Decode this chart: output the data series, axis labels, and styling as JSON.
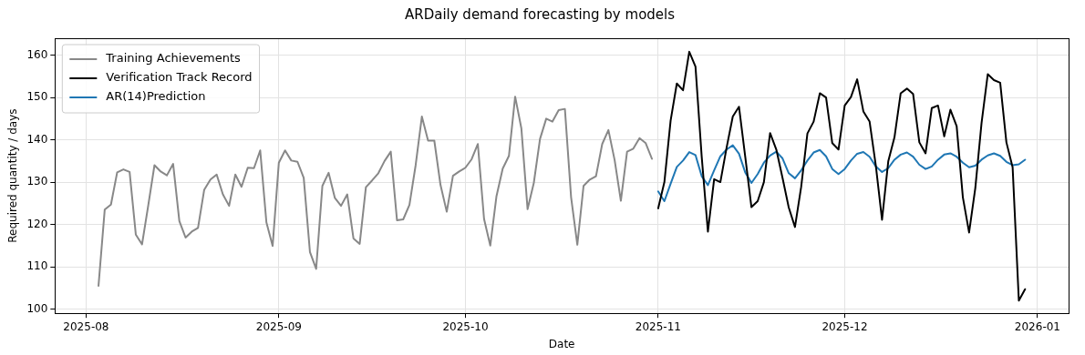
{
  "chart_data": {
    "type": "line",
    "title": "ARDaily demand forecasting by models",
    "xlabel": "Date",
    "ylabel": "Required quantity / days",
    "xlim": [
      "2025-07-27",
      "2026-01-06"
    ],
    "xticks": [
      {
        "value": "2025-08-01",
        "label": "2025-08"
      },
      {
        "value": "2025-09-01",
        "label": "2025-09"
      },
      {
        "value": "2025-10-01",
        "label": "2025-10"
      },
      {
        "value": "2025-11-01",
        "label": "2025-11"
      },
      {
        "value": "2025-12-01",
        "label": "2025-12"
      },
      {
        "value": "2026-01-01",
        "label": "2026-01"
      }
    ],
    "ylim": [
      99,
      164
    ],
    "yticks": [
      100,
      110,
      120,
      130,
      140,
      150,
      160
    ],
    "grid": true,
    "legend": "top left",
    "series": [
      {
        "name": "Training Achievements",
        "color": "#888888",
        "x": [
          "2025-08-03",
          "2025-08-04",
          "2025-08-05",
          "2025-08-06",
          "2025-08-07",
          "2025-08-08",
          "2025-08-09",
          "2025-08-10",
          "2025-08-11",
          "2025-08-12",
          "2025-08-13",
          "2025-08-14",
          "2025-08-15",
          "2025-08-16",
          "2025-08-17",
          "2025-08-18",
          "2025-08-19",
          "2025-08-20",
          "2025-08-21",
          "2025-08-22",
          "2025-08-23",
          "2025-08-24",
          "2025-08-25",
          "2025-08-26",
          "2025-08-27",
          "2025-08-28",
          "2025-08-29",
          "2025-08-30",
          "2025-08-31",
          "2025-09-01",
          "2025-09-02",
          "2025-09-03",
          "2025-09-04",
          "2025-09-05",
          "2025-09-06",
          "2025-09-07",
          "2025-09-08",
          "2025-09-09",
          "2025-09-10",
          "2025-09-11",
          "2025-09-12",
          "2025-09-13",
          "2025-09-14",
          "2025-09-15",
          "2025-09-16",
          "2025-09-17",
          "2025-09-18",
          "2025-09-19",
          "2025-09-20",
          "2025-09-21",
          "2025-09-22",
          "2025-09-23",
          "2025-09-24",
          "2025-09-25",
          "2025-09-26",
          "2025-09-27",
          "2025-09-28",
          "2025-09-29",
          "2025-09-30",
          "2025-10-01",
          "2025-10-02",
          "2025-10-03",
          "2025-10-04",
          "2025-10-05",
          "2025-10-06",
          "2025-10-07",
          "2025-10-08",
          "2025-10-09",
          "2025-10-10",
          "2025-10-11",
          "2025-10-12",
          "2025-10-13",
          "2025-10-14",
          "2025-10-15",
          "2025-10-16",
          "2025-10-17",
          "2025-10-18",
          "2025-10-19",
          "2025-10-20",
          "2025-10-21",
          "2025-10-22",
          "2025-10-23",
          "2025-10-24",
          "2025-10-25",
          "2025-10-26",
          "2025-10-27",
          "2025-10-28",
          "2025-10-29",
          "2025-10-30",
          "2025-10-31"
        ],
        "values": [
          105.5,
          123.5,
          124.7,
          132.3,
          133,
          132.4,
          117.6,
          115.3,
          124.5,
          134,
          132.5,
          131.6,
          134.3,
          120.8,
          116.9,
          118.3,
          119.2,
          128.2,
          130.6,
          131.8,
          127.1,
          124.4,
          131.8,
          128.9,
          133.4,
          133.3,
          137.5,
          120.5,
          114.9,
          134.6,
          137.5,
          135.1,
          134.8,
          131,
          113.5,
          109.5,
          129.1,
          132.2,
          126.3,
          124.4,
          127.1,
          116.7,
          115.4,
          128.8,
          130.4,
          132.1,
          135,
          137.2,
          121,
          121.2,
          124.6,
          134,
          145.5,
          139.8,
          139.8,
          129.3,
          123,
          131.5,
          132.5,
          133.4,
          135.4,
          139,
          121.3,
          115,
          126.7,
          133.2,
          136.2,
          150.2,
          142.7,
          123.6,
          129.8,
          140.2,
          145,
          144.3,
          147,
          147.3,
          126.4,
          115.2,
          129.1,
          130.6,
          131.4,
          139,
          142.3,
          135.2,
          125.6,
          137.2,
          137.9,
          140.4,
          139.2,
          135.5
        ]
      },
      {
        "name": "Verification Track Record",
        "color": "#000000",
        "x": [
          "2025-11-01",
          "2025-11-02",
          "2025-11-03",
          "2025-11-04",
          "2025-11-05",
          "2025-11-06",
          "2025-11-07",
          "2025-11-08",
          "2025-11-09",
          "2025-11-10",
          "2025-11-11",
          "2025-11-12",
          "2025-11-13",
          "2025-11-14",
          "2025-11-15",
          "2025-11-16",
          "2025-11-17",
          "2025-11-18",
          "2025-11-19",
          "2025-11-20",
          "2025-11-21",
          "2025-11-22",
          "2025-11-23",
          "2025-11-24",
          "2025-11-25",
          "2025-11-26",
          "2025-11-27",
          "2025-11-28",
          "2025-11-29",
          "2025-11-30",
          "2025-12-01",
          "2025-12-02",
          "2025-12-03",
          "2025-12-04",
          "2025-12-05",
          "2025-12-06",
          "2025-12-07",
          "2025-12-08",
          "2025-12-09",
          "2025-12-10",
          "2025-12-11",
          "2025-12-12",
          "2025-12-13",
          "2025-12-14",
          "2025-12-15",
          "2025-12-16",
          "2025-12-17",
          "2025-12-18",
          "2025-12-19",
          "2025-12-20",
          "2025-12-21",
          "2025-12-22",
          "2025-12-23",
          "2025-12-24",
          "2025-12-25",
          "2025-12-26",
          "2025-12-27",
          "2025-12-28",
          "2025-12-29",
          "2025-12-30"
        ],
        "values": [
          123.8,
          130,
          144.5,
          153.3,
          151.7,
          160.8,
          157.3,
          136,
          118.3,
          130.7,
          130,
          138.1,
          145.5,
          147.8,
          136,
          124.1,
          125.5,
          130,
          141.6,
          137.7,
          131,
          124,
          119.4,
          128.9,
          141.5,
          144.3,
          151,
          150,
          139.2,
          137.7,
          148.1,
          150.1,
          154.3,
          146.7,
          144.3,
          133.9,
          121.1,
          134.9,
          140.6,
          151,
          152.1,
          150.8,
          139.4,
          136.8,
          147.5,
          148.1,
          140.8,
          147.1,
          143.2,
          126.4,
          118.1,
          128.6,
          143.9,
          155.5,
          154.1,
          153.5,
          139.4,
          133.5,
          102,
          104.7
        ]
      },
      {
        "name": "AR(14)Prediction",
        "color": "#1f77b4",
        "x": [
          "2025-11-01",
          "2025-11-02",
          "2025-11-03",
          "2025-11-04",
          "2025-11-05",
          "2025-11-06",
          "2025-11-07",
          "2025-11-08",
          "2025-11-09",
          "2025-11-10",
          "2025-11-11",
          "2025-11-12",
          "2025-11-13",
          "2025-11-14",
          "2025-11-15",
          "2025-11-16",
          "2025-11-17",
          "2025-11-18",
          "2025-11-19",
          "2025-11-20",
          "2025-11-21",
          "2025-11-22",
          "2025-11-23",
          "2025-11-24",
          "2025-11-25",
          "2025-11-26",
          "2025-11-27",
          "2025-11-28",
          "2025-11-29",
          "2025-11-30",
          "2025-12-01",
          "2025-12-02",
          "2025-12-03",
          "2025-12-04",
          "2025-12-05",
          "2025-12-06",
          "2025-12-07",
          "2025-12-08",
          "2025-12-09",
          "2025-12-10",
          "2025-12-11",
          "2025-12-12",
          "2025-12-13",
          "2025-12-14",
          "2025-12-15",
          "2025-12-16",
          "2025-12-17",
          "2025-12-18",
          "2025-12-19",
          "2025-12-20",
          "2025-12-21",
          "2025-12-22",
          "2025-12-23",
          "2025-12-24",
          "2025-12-25",
          "2025-12-26",
          "2025-12-27",
          "2025-12-28",
          "2025-12-29",
          "2025-12-30"
        ],
        "values": [
          127.8,
          125.5,
          129.6,
          133.6,
          135.1,
          137.1,
          136.4,
          131.4,
          129.3,
          132.8,
          136.1,
          137.7,
          138.7,
          136.7,
          132.3,
          129.8,
          131.9,
          134.6,
          136.3,
          137.2,
          135.6,
          132.1,
          130.9,
          132.8,
          135.1,
          137,
          137.6,
          136.1,
          133.1,
          131.9,
          133.1,
          135.1,
          136.7,
          137.1,
          136,
          133.7,
          132.4,
          133.3,
          135.3,
          136.5,
          137,
          136,
          134.1,
          133.1,
          133.7,
          135.3,
          136.5,
          136.8,
          136,
          134.6,
          133.5,
          133.9,
          135.3,
          136.3,
          136.8,
          136.2,
          134.8,
          134,
          134.2,
          135.3
        ]
      }
    ]
  }
}
